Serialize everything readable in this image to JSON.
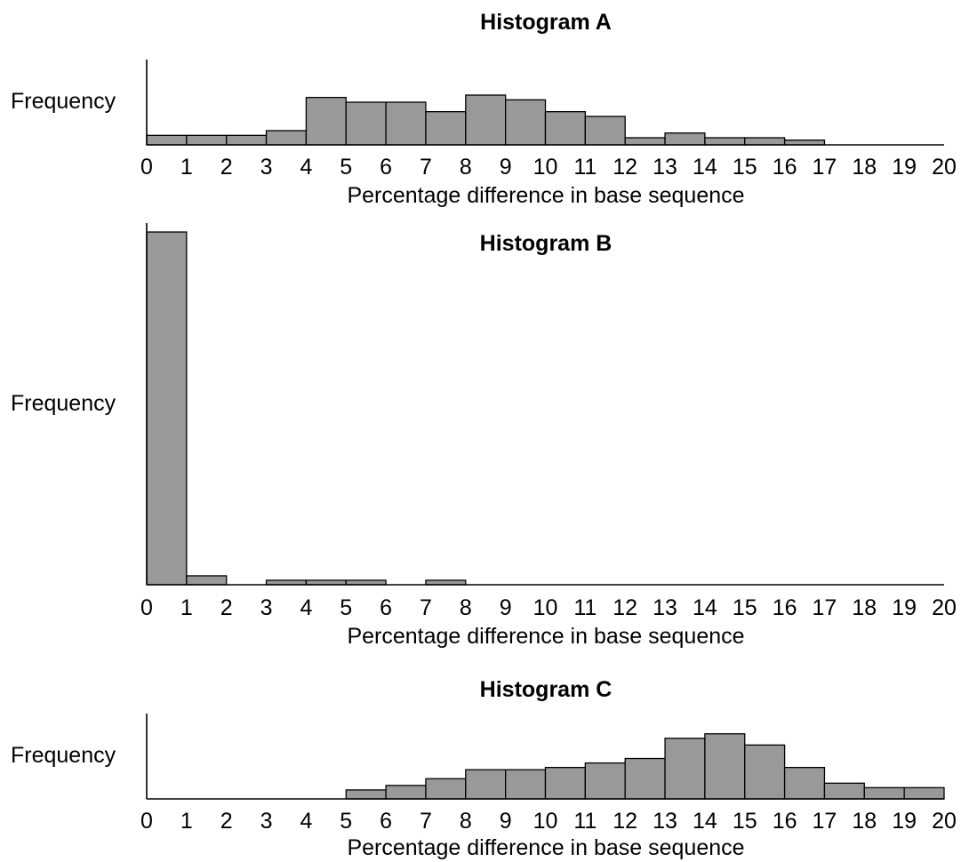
{
  "chart_data": [
    {
      "type": "bar",
      "title": "Histogram A",
      "ylabel": "Frequency",
      "xlabel": "Percentage difference in base sequence",
      "x_ticks": [
        "0",
        "1",
        "2",
        "3",
        "4",
        "5",
        "6",
        "7",
        "8",
        "9",
        "10",
        "11",
        "12",
        "13",
        "14",
        "15",
        "16",
        "17",
        "18",
        "19",
        "20"
      ],
      "bin_edges": [
        0,
        1,
        2,
        3,
        4,
        5,
        6,
        7,
        8,
        9,
        10,
        11,
        12,
        13,
        14,
        15,
        16,
        17,
        18,
        19,
        20
      ],
      "values": [
        2.0,
        2.0,
        2.0,
        3.0,
        10.0,
        9.0,
        9.0,
        7.0,
        10.5,
        9.5,
        7.0,
        6.0,
        1.5,
        2.5,
        1.5,
        1.5,
        1.0,
        0,
        0,
        0
      ],
      "ylim": [
        0,
        18
      ],
      "grid": false,
      "bar_color": "#999999"
    },
    {
      "type": "bar",
      "title": "Histogram B",
      "ylabel": "Frequency",
      "xlabel": "Percentage difference in base sequence",
      "x_ticks": [
        "0",
        "1",
        "2",
        "3",
        "4",
        "5",
        "6",
        "7",
        "8",
        "9",
        "10",
        "11",
        "12",
        "13",
        "14",
        "15",
        "16",
        "17",
        "18",
        "19",
        "20"
      ],
      "bin_edges": [
        0,
        1,
        2,
        3,
        4,
        5,
        6,
        7,
        8,
        9,
        10,
        11,
        12,
        13,
        14,
        15,
        16,
        17,
        18,
        19,
        20
      ],
      "values": [
        79,
        2,
        0,
        1,
        1,
        1,
        0,
        1,
        0,
        0,
        0,
        0,
        0,
        0,
        0,
        0,
        0,
        0,
        0,
        0
      ],
      "ylim": [
        0,
        81
      ],
      "grid": false,
      "bar_color": "#999999"
    },
    {
      "type": "bar",
      "title": "Histogram C",
      "ylabel": "Frequency",
      "xlabel": "Percentage difference in base sequence",
      "x_ticks": [
        "0",
        "1",
        "2",
        "3",
        "4",
        "5",
        "6",
        "7",
        "8",
        "9",
        "10",
        "11",
        "12",
        "13",
        "14",
        "15",
        "16",
        "17",
        "18",
        "19",
        "20"
      ],
      "bin_edges": [
        0,
        1,
        2,
        3,
        4,
        5,
        6,
        7,
        8,
        9,
        10,
        11,
        12,
        13,
        14,
        15,
        16,
        17,
        18,
        19,
        20
      ],
      "values": [
        0,
        0,
        0,
        0,
        0,
        2.0,
        3.0,
        4.5,
        6.5,
        6.5,
        7.0,
        8.0,
        9.0,
        13.5,
        14.5,
        12.0,
        7.0,
        3.5,
        2.5,
        2.5
      ],
      "ylim": [
        0,
        19
      ],
      "grid": false,
      "bar_color": "#999999"
    }
  ]
}
